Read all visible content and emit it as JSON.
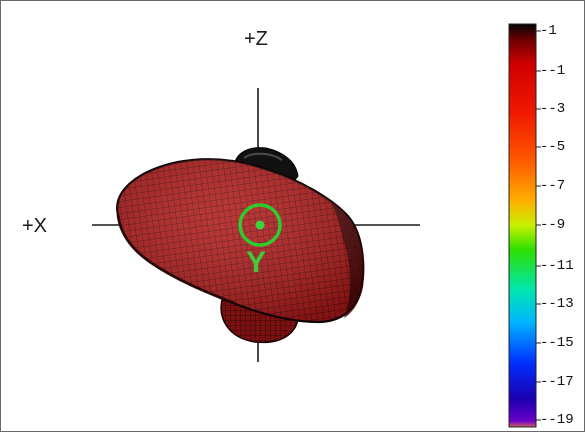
{
  "view": {
    "axis_top": "+Z",
    "axis_left": "+X",
    "marker_label": "Y"
  },
  "colorbar": {
    "ticks": [
      "-1",
      "--1",
      "--3",
      "--5",
      "--7",
      "--9",
      "--11",
      "--13",
      "--15",
      "--17",
      "--19"
    ],
    "colors": [
      "#000000",
      "#8b0000",
      "#ff1a00",
      "#ff5a00",
      "#ff9a00",
      "#ffe100",
      "#a0ff00",
      "#00e000",
      "#00e0c0",
      "#0090ff",
      "#0020ff",
      "#2000a0",
      "#6a00c0"
    ]
  }
}
